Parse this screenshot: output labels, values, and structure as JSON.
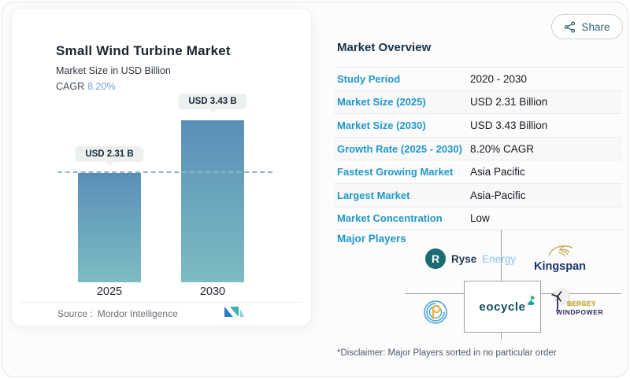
{
  "header": {
    "share_label": "Share"
  },
  "chart_card": {
    "title": "Small Wind Turbine Market",
    "subtitle": "Market Size in USD Billion",
    "cagr_label": "CAGR",
    "cagr_value": "8.20%",
    "source_label": "Source :",
    "source_value": "Mordor Intelligence"
  },
  "chart_data": {
    "type": "bar",
    "title": "Small Wind Turbine Market",
    "subtitle": "Market Size in USD Billion",
    "unit": "USD Billion",
    "categories": [
      "2025",
      "2030"
    ],
    "values": [
      2.31,
      3.43
    ],
    "bar_labels": [
      "USD 2.31 B",
      "USD 3.43 B"
    ],
    "cagr_percent": 8.2,
    "reference_line": 2.31,
    "ylim": [
      0,
      4
    ],
    "grid": false,
    "legend": "none",
    "bar_color_top": "#5a8fb8",
    "bar_color_bottom": "#7dbcc2"
  },
  "overview": {
    "title": "Market Overview",
    "rows": [
      {
        "label": "Study Period",
        "value": "2020 - 2030"
      },
      {
        "label": "Market Size (2025)",
        "value": "USD 2.31 Billion"
      },
      {
        "label": "Market Size (2030)",
        "value": "USD 3.43 Billion"
      },
      {
        "label": "Growth Rate (2025 - 2030)",
        "value": "8.20% CAGR"
      },
      {
        "label": "Fastest Growing Market",
        "value": "Asia Pacific"
      },
      {
        "label": "Largest Market",
        "value": "Asia-Pacific"
      },
      {
        "label": "Market Concentration",
        "value": "Low"
      }
    ],
    "major_players_label": "Major Players",
    "players": [
      {
        "name": "Ryse Energy",
        "text1": "Ryse",
        "text2": "Energy"
      },
      {
        "name": "Kingspan",
        "text": "Kingspan"
      },
      {
        "name": "PG monogram company"
      },
      {
        "name": "Eocycle",
        "text": "eocycle"
      },
      {
        "name": "Bergey WindPower",
        "text1": "BERGEY",
        "text2": "WINDPOWER"
      }
    ],
    "disclaimer": "*Disclaimer: Major Players sorted in no particular order"
  },
  "icons": {
    "share": "share-nodes-icon",
    "mordor_logo": "mordor-intelligence-logo",
    "ryse_badge": "ryse-r-circle-icon",
    "kingspan_lion": "kingspan-lion-icon",
    "pg_monogram": "pg-concentric-circles-icon",
    "eocycle_pinwheel": "eocycle-pinwheel-icon",
    "bergey_turbine": "wind-turbine-icon"
  },
  "colors": {
    "accent_blue": "#2097c9",
    "heading_navy": "#16334a",
    "cagr_blue": "#78a2c4",
    "dashed_line": "#8fb4c9",
    "share_teal": "#2e6175",
    "pill_bg": "#edf1ee"
  }
}
